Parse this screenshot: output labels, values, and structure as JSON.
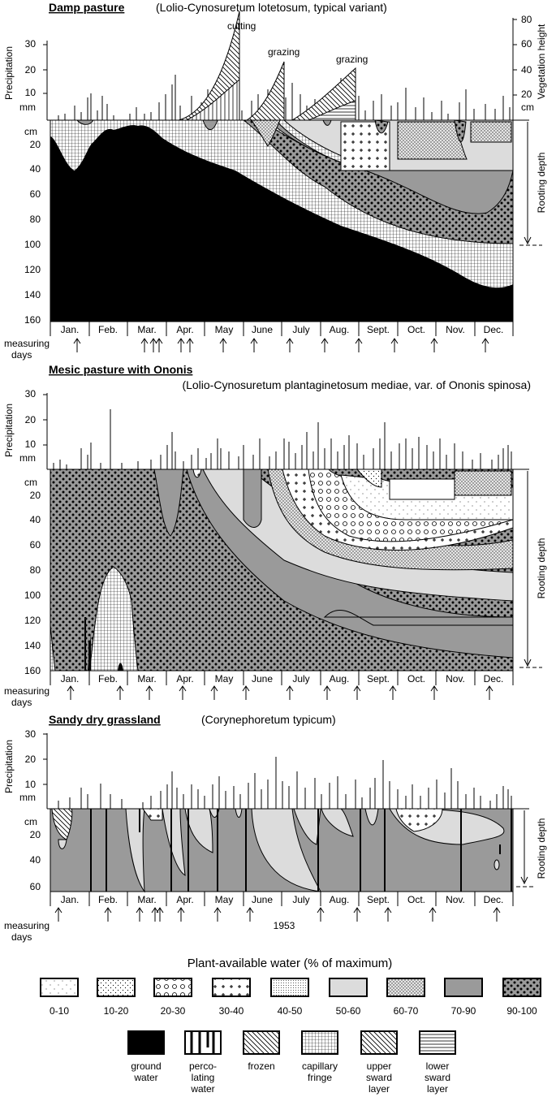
{
  "panels": [
    {
      "title": "Damp pasture",
      "subtitle": "(Lolio-Cynosuretum lotetosum, typical variant)",
      "precip_unit": "mm",
      "precip_label": "Precipitation",
      "precip_ticks": [
        "30",
        "20",
        "10"
      ],
      "veg_label": "Vegetation height",
      "veg_unit": "cm",
      "veg_ticks": [
        "80",
        "60",
        "40",
        "20"
      ],
      "depth_unit": "cm",
      "depth_ticks": [
        "20",
        "40",
        "60",
        "80",
        "100",
        "120",
        "140",
        "160"
      ],
      "annotations": [
        "cutting",
        "grazing",
        "grazing"
      ],
      "rooting_label": "Rooting depth"
    },
    {
      "title": "Mesic pasture with Ononis",
      "subtitle": "(Lolio-Cynosuretum plantaginetosum mediae, var. of Ononis spinosa)",
      "precip_unit": "mm",
      "precip_label": "Precipitation",
      "precip_ticks": [
        "30",
        "20",
        "10"
      ],
      "depth_unit": "cm",
      "depth_ticks": [
        "20",
        "40",
        "60",
        "80",
        "100",
        "120",
        "140",
        "160"
      ],
      "rooting_label": "Rooting depth"
    },
    {
      "title": "Sandy dry grassland",
      "subtitle": "(Corynephoretum typicum)",
      "precip_unit": "mm",
      "precip_label": "Precipitation",
      "precip_ticks": [
        "30",
        "20",
        "10"
      ],
      "depth_unit": "cm",
      "depth_ticks": [
        "20",
        "40",
        "60"
      ],
      "rooting_label": "Rooting depth",
      "year": "1953"
    }
  ],
  "months": [
    "Jan.",
    "Feb.",
    "Mar.",
    "Apr.",
    "May",
    "June",
    "July",
    "Aug.",
    "Sept.",
    "Oct.",
    "Nov.",
    "Dec."
  ],
  "measuring_label_1": "measuring",
  "measuring_label_2": "days",
  "legend": {
    "title": "Plant-available water  (% of maximum)",
    "classes": [
      "0-10",
      "10-20",
      "20-30",
      "30-40",
      "40-50",
      "50-60",
      "60-70",
      "70-90",
      "90-100"
    ],
    "others": [
      {
        "l1": "ground",
        "l2": "water",
        "l3": ""
      },
      {
        "l1": "perco-",
        "l2": "lating",
        "l3": "water"
      },
      {
        "l1": "frozen",
        "l2": "",
        "l3": ""
      },
      {
        "l1": "capillary",
        "l2": "fringe",
        "l3": ""
      },
      {
        "l1": "upper",
        "l2": "sward",
        "l3": "layer"
      },
      {
        "l1": "lower",
        "l2": "sward",
        "l3": "layer"
      }
    ]
  },
  "colors": {
    "black": "#000000",
    "grey": "#9a9a9a",
    "light": "#dcdcdc",
    "white": "#ffffff"
  }
}
